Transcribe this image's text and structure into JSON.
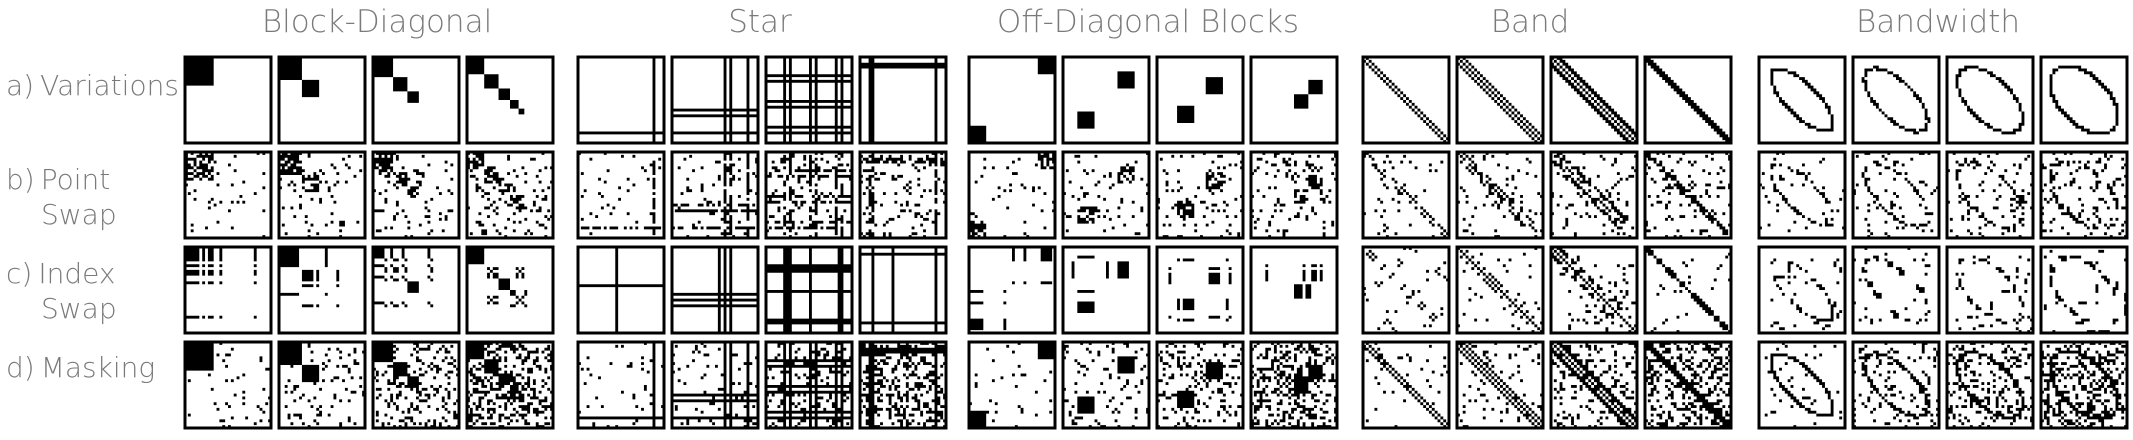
{
  "column_titles": [
    "Block-Diagonal",
    "Star",
    "Off-Diagonal Blocks",
    "Band",
    "Bandwidth"
  ],
  "rows": [
    {
      "prefix": "a)",
      "lines": [
        "Variations"
      ]
    },
    {
      "prefix": "b)",
      "lines": [
        "Point",
        "Swap"
      ]
    },
    {
      "prefix": "c)",
      "lines": [
        "Index",
        "Swap"
      ]
    },
    {
      "prefix": "d)",
      "lines": [
        "Masking"
      ]
    }
  ],
  "colors": {
    "ink": "#000000",
    "label": "#7a7a7a",
    "background": "#ffffff"
  }
}
